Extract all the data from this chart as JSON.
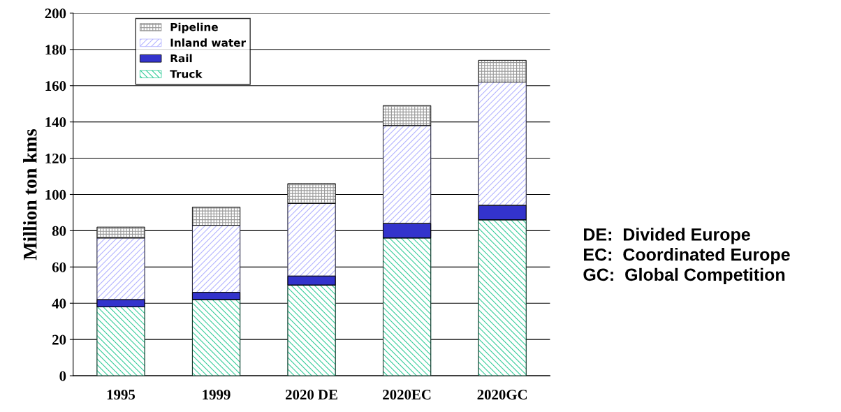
{
  "chart_data": {
    "type": "bar",
    "stacked": true,
    "categories": [
      "1995",
      "1999",
      "2020 DE",
      "2020EC",
      "2020GC"
    ],
    "ylabel": "Million ton kms",
    "ylim": [
      0,
      200
    ],
    "yticks": [
      0,
      20,
      40,
      60,
      80,
      100,
      120,
      140,
      160,
      180,
      200
    ],
    "grid": "y",
    "legend": "top left",
    "series": [
      {
        "name": "Truck",
        "color": "#33cc99",
        "values": [
          38,
          42,
          50,
          76,
          86
        ]
      },
      {
        "name": "Rail",
        "color": "#3333cc",
        "values": [
          4,
          4,
          5,
          8,
          8
        ]
      },
      {
        "name": "Inland water",
        "color": "#b3b3ff",
        "values": [
          34,
          37,
          40,
          54,
          68
        ]
      },
      {
        "name": "Pipeline",
        "color": "#999999",
        "values": [
          6,
          10,
          11,
          11,
          12
        ]
      }
    ],
    "annotations": [
      "DE:  Divided Europe\nEC:  Coordinated Europe\nGC:  Global Competition"
    ]
  }
}
